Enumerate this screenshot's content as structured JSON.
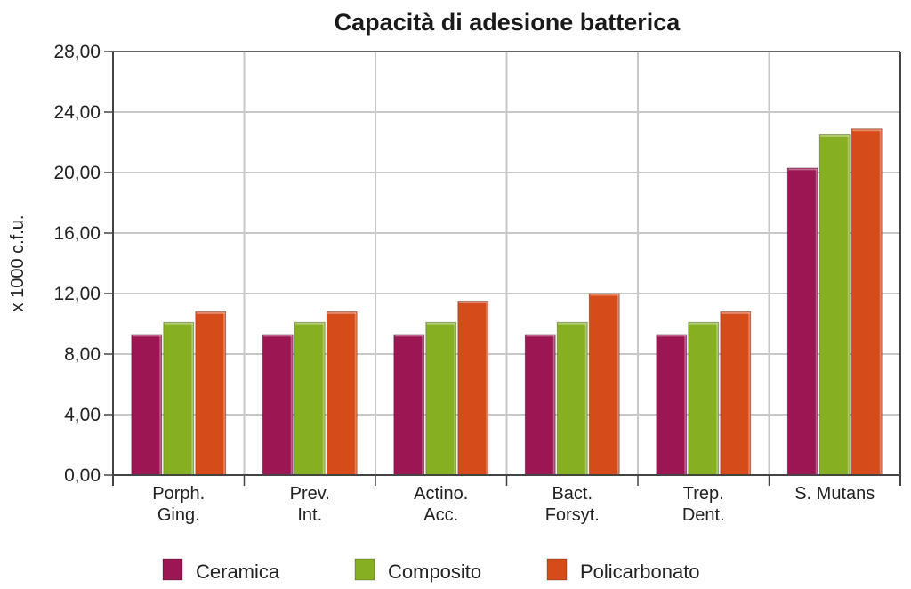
{
  "chart_data": {
    "type": "bar",
    "title": "Capacità di adesione batterica",
    "xlabel": "",
    "ylabel": "x 1000 c.f.u.",
    "ylim": [
      0,
      28
    ],
    "yticks": [
      0,
      4,
      8,
      12,
      16,
      20,
      24,
      28
    ],
    "ytick_labels": [
      "0,00",
      "4,00",
      "8,00",
      "12,00",
      "16,00",
      "20,00",
      "24,00",
      "28,00"
    ],
    "grid": true,
    "legend_position": "bottom",
    "categories": [
      [
        "Porph.",
        "Ging."
      ],
      [
        "Prev.",
        "Int."
      ],
      [
        "Actino.",
        "Acc."
      ],
      [
        "Bact.",
        "Forsyt."
      ],
      [
        "Trep.",
        "Dent."
      ],
      [
        "S. Mutans"
      ]
    ],
    "series": [
      {
        "name": "Ceramica",
        "color": "#9b1652",
        "values": [
          9.3,
          9.3,
          9.3,
          9.3,
          9.3,
          20.3
        ]
      },
      {
        "name": "Composito",
        "color": "#86b022",
        "values": [
          10.1,
          10.1,
          10.1,
          10.1,
          10.1,
          22.5
        ]
      },
      {
        "name": "Policarbonato",
        "color": "#d64b1a",
        "values": [
          10.8,
          10.8,
          11.5,
          12.0,
          10.8,
          22.9
        ]
      }
    ]
  }
}
